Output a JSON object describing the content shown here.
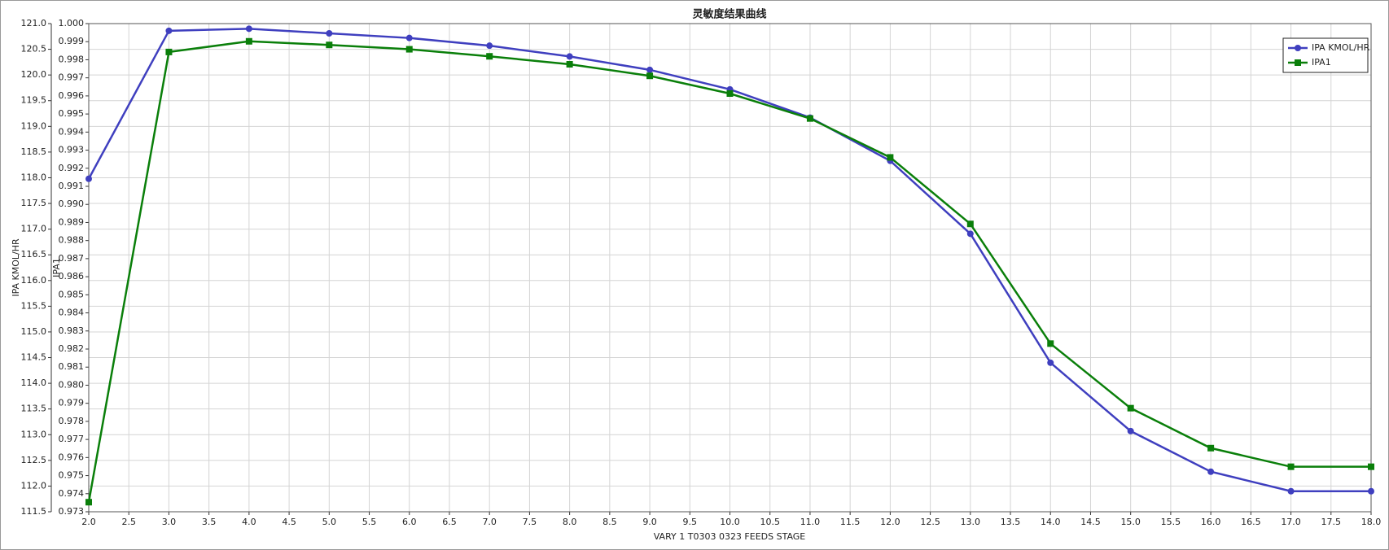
{
  "chart_data": {
    "type": "line",
    "title": "灵敏度结果曲线",
    "x_label": "VARY   1 T0303 0323 FEEDS STAGE",
    "y_label": "IPA KMOL/HR",
    "y2_label": "IPA1",
    "x": [
      2,
      3,
      4,
      5,
      6,
      7,
      8,
      9,
      10,
      11,
      12,
      13,
      14,
      15,
      16,
      17,
      18
    ],
    "series": [
      {
        "name": "IPA KMOL/HR",
        "color": "#3f3fbf",
        "marker": "circle",
        "axis": "y",
        "values": [
          117.98,
          120.86,
          120.9,
          120.81,
          120.72,
          120.57,
          120.36,
          120.1,
          119.72,
          119.17,
          118.33,
          116.91,
          114.4,
          113.07,
          112.28,
          111.9,
          111.9
        ]
      },
      {
        "name": "IPA1",
        "color": "#0a7f0a",
        "marker": "square",
        "axis": "y2",
        "values": [
          0.97353,
          0.99843,
          0.99902,
          0.99882,
          0.99858,
          0.99819,
          0.99775,
          0.99711,
          0.99613,
          0.99475,
          0.9926,
          0.98892,
          0.9823,
          0.97873,
          0.97652,
          0.97549,
          0.97549
        ]
      }
    ],
    "xlim": [
      2,
      18
    ],
    "xticks": [
      {
        "value": 2,
        "label": "2.0"
      },
      2.5,
      {
        "value": 3,
        "label": "3.0"
      },
      3.5,
      {
        "value": 4,
        "label": "4.0"
      },
      4.5,
      {
        "value": 5,
        "label": "5.0"
      },
      5.5,
      {
        "value": 6,
        "label": "6.0"
      },
      6.5,
      {
        "value": 7,
        "label": "7.0"
      },
      7.5,
      {
        "value": 8,
        "label": "8.0"
      },
      8.5,
      {
        "value": 9,
        "label": "9.0"
      },
      9.5,
      {
        "value": 10,
        "label": "10.0"
      },
      10.5,
      {
        "value": 11,
        "label": "11.0"
      },
      11.5,
      {
        "value": 12,
        "label": "12.0"
      },
      12.5,
      {
        "value": 13,
        "label": "13.0"
      },
      13.5,
      {
        "value": 14,
        "label": "14.0"
      },
      14.5,
      {
        "value": 15,
        "label": "15.0"
      },
      15.5,
      {
        "value": 16,
        "label": "16.0"
      },
      16.5,
      {
        "value": 17,
        "label": "17.0"
      },
      17.5,
      {
        "value": 18,
        "label": "18.0"
      }
    ],
    "ylim": [
      111.5,
      121.0
    ],
    "yticks": [
      111.5,
      {
        "value": 112,
        "label": "112.0"
      },
      112.5,
      {
        "value": 113,
        "label": "113.0"
      },
      113.5,
      {
        "value": 114,
        "label": "114.0"
      },
      114.5,
      {
        "value": 115,
        "label": "115.0"
      },
      115.5,
      {
        "value": 116,
        "label": "116.0"
      },
      116.5,
      {
        "value": 117,
        "label": "117.0"
      },
      117.5,
      {
        "value": 118,
        "label": "118.0"
      },
      118.5,
      {
        "value": 119,
        "label": "119.0"
      },
      119.5,
      {
        "value": 120,
        "label": "120.0"
      },
      120.5,
      {
        "value": 121,
        "label": "121.0"
      }
    ],
    "y2lim": [
      0.973,
      1.0
    ],
    "y2ticks": [
      0.973,
      0.974,
      0.975,
      0.976,
      0.977,
      0.978,
      0.979,
      {
        "value": 0.98,
        "label": "0.980"
      },
      0.981,
      0.982,
      0.983,
      0.984,
      0.985,
      0.986,
      0.987,
      0.988,
      0.989,
      {
        "value": 0.99,
        "label": "0.990"
      },
      0.991,
      0.992,
      0.993,
      0.994,
      0.995,
      0.996,
      0.997,
      0.998,
      0.999,
      {
        "value": 1.0,
        "label": "1.000"
      }
    ],
    "grid": true,
    "legend": "top-right"
  }
}
